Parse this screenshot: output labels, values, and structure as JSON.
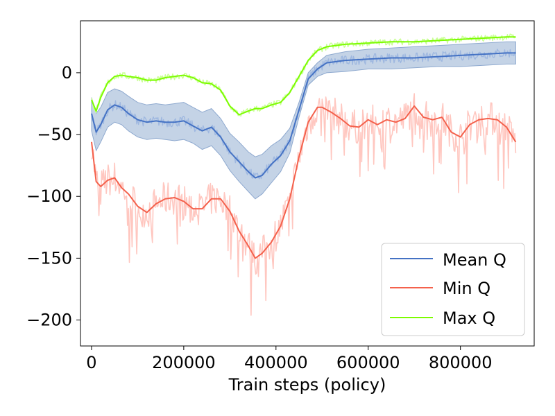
{
  "chart_data": {
    "type": "line",
    "title": "",
    "xlabel": "Train steps (policy)",
    "ylabel": "",
    "xlim": [
      -24000,
      960000
    ],
    "ylim": [
      -221,
      42
    ],
    "grid": false,
    "legend_position": "lower-right",
    "x_ticks": [
      0,
      200000,
      400000,
      600000,
      800000
    ],
    "x_tick_labels": [
      "0",
      "200000",
      "400000",
      "600000",
      "800000"
    ],
    "y_ticks": [
      0,
      -50,
      -100,
      -150,
      -200
    ],
    "y_tick_labels": [
      "0",
      "−50",
      "−100",
      "−150",
      "−200"
    ],
    "series": [
      {
        "name": "Mean Q",
        "color": "#4472c4",
        "band_color": "#b0c4de",
        "x": [
          0,
          10000,
          20000,
          35000,
          50000,
          65000,
          80000,
          100000,
          120000,
          140000,
          160000,
          180000,
          200000,
          220000,
          240000,
          260000,
          280000,
          300000,
          320000,
          340000,
          355000,
          370000,
          390000,
          410000,
          430000,
          450000,
          470000,
          490000,
          510000,
          550000,
          600000,
          650000,
          700000,
          750000,
          800000,
          850000,
          900000,
          920000
        ],
        "values": [
          -33,
          -48,
          -42,
          -30,
          -26,
          -28,
          -33,
          -38,
          -40,
          -39,
          -40,
          -40,
          -39,
          -43,
          -47,
          -44,
          -52,
          -64,
          -72,
          -80,
          -85,
          -83,
          -74,
          -67,
          -55,
          -30,
          -5,
          3,
          8,
          10,
          11,
          12,
          12,
          13,
          14,
          15,
          16,
          16
        ],
        "lower": [
          -47,
          -63,
          -56,
          -44,
          -40,
          -42,
          -47,
          -52,
          -54,
          -53,
          -54,
          -55,
          -54,
          -57,
          -62,
          -59,
          -67,
          -79,
          -88,
          -96,
          -102,
          -98,
          -89,
          -80,
          -65,
          -36,
          -10,
          -3,
          0,
          1,
          3,
          3,
          4,
          5,
          5,
          6,
          7,
          7
        ],
        "upper": [
          -20,
          -33,
          -28,
          -16,
          -13,
          -15,
          -19,
          -24,
          -26,
          -25,
          -26,
          -25,
          -24,
          -28,
          -32,
          -29,
          -37,
          -49,
          -56,
          -64,
          -68,
          -66,
          -59,
          -54,
          -45,
          -24,
          0,
          8,
          14,
          17,
          19,
          20,
          21,
          22,
          23,
          24,
          25,
          25
        ]
      },
      {
        "name": "Min Q",
        "color": "#f4614c",
        "noise_color": "#ffc7c0",
        "x": [
          0,
          10000,
          20000,
          35000,
          50000,
          65000,
          80000,
          100000,
          120000,
          140000,
          160000,
          180000,
          200000,
          220000,
          240000,
          260000,
          280000,
          300000,
          320000,
          340000,
          355000,
          370000,
          390000,
          410000,
          430000,
          450000,
          470000,
          490000,
          500000,
          520000,
          540000,
          560000,
          580000,
          600000,
          620000,
          640000,
          660000,
          680000,
          700000,
          720000,
          740000,
          760000,
          780000,
          800000,
          820000,
          840000,
          860000,
          880000,
          900000,
          920000
        ],
        "values": [
          -56,
          -88,
          -92,
          -87,
          -85,
          -93,
          -98,
          -108,
          -113,
          -106,
          -102,
          -101,
          -104,
          -110,
          -110,
          -102,
          -102,
          -112,
          -128,
          -140,
          -150,
          -146,
          -137,
          -124,
          -102,
          -68,
          -40,
          -28,
          -28,
          -32,
          -37,
          -43,
          -44,
          -38,
          -42,
          -38,
          -40,
          -37,
          -27,
          -36,
          -38,
          -36,
          -48,
          -52,
          -42,
          -38,
          -37,
          -38,
          -44,
          -56
        ]
      },
      {
        "name": "Max Q",
        "color": "#7cfc00",
        "noise_color": "#ccff99",
        "x": [
          0,
          10000,
          20000,
          35000,
          50000,
          65000,
          80000,
          100000,
          120000,
          140000,
          160000,
          180000,
          200000,
          220000,
          240000,
          260000,
          280000,
          300000,
          320000,
          340000,
          355000,
          370000,
          390000,
          410000,
          430000,
          450000,
          470000,
          490000,
          510000,
          550000,
          600000,
          650000,
          700000,
          750000,
          800000,
          850000,
          900000,
          920000
        ],
        "values": [
          -22,
          -31,
          -20,
          -8,
          -3,
          -2,
          -3,
          -4,
          -6,
          -6,
          -4,
          -3,
          -2,
          -4,
          -8,
          -9,
          -14,
          -27,
          -34,
          -31,
          -29,
          -29,
          -26,
          -24,
          -16,
          -3,
          10,
          18,
          21,
          23,
          24,
          25,
          25,
          26,
          27,
          28,
          29,
          29
        ]
      }
    ]
  }
}
